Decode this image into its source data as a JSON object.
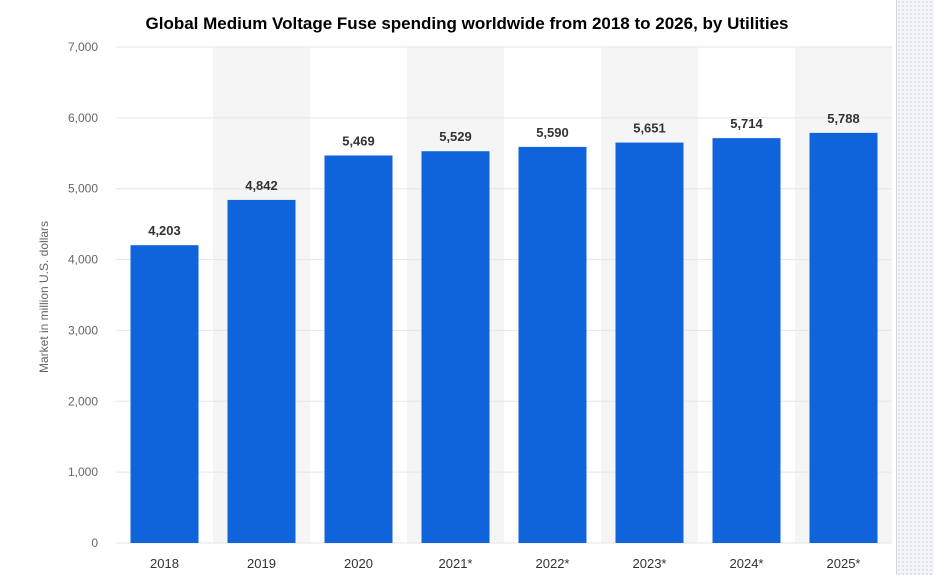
{
  "chart_data": {
    "type": "bar",
    "title": "Global Medium Voltage Fuse spending worldwide from 2018 to 2026, by Utilities",
    "xlabel": "",
    "ylabel": "Market in million U.S. dollars",
    "categories": [
      "2018",
      "2019",
      "2020",
      "2021*",
      "2022*",
      "2023*",
      "2024*",
      "2025*"
    ],
    "values": [
      4203,
      4842,
      5469,
      5529,
      5590,
      5651,
      5714,
      5788
    ],
    "value_labels": [
      "4,203",
      "4,842",
      "5,469",
      "5,529",
      "5,590",
      "5,651",
      "5,714",
      "5,788"
    ],
    "ylim": [
      0,
      7000
    ],
    "yticks": [
      0,
      1000,
      2000,
      3000,
      4000,
      5000,
      6000,
      7000
    ],
    "ytick_labels": [
      "0",
      "1,000",
      "2,000",
      "3,000",
      "4,000",
      "5,000",
      "6,000",
      "7,000"
    ],
    "grid": true,
    "legend": "none",
    "colors": {
      "bar": "#0f64dc",
      "band": "#f5f5f5",
      "grid": "#e6e6e6"
    }
  }
}
